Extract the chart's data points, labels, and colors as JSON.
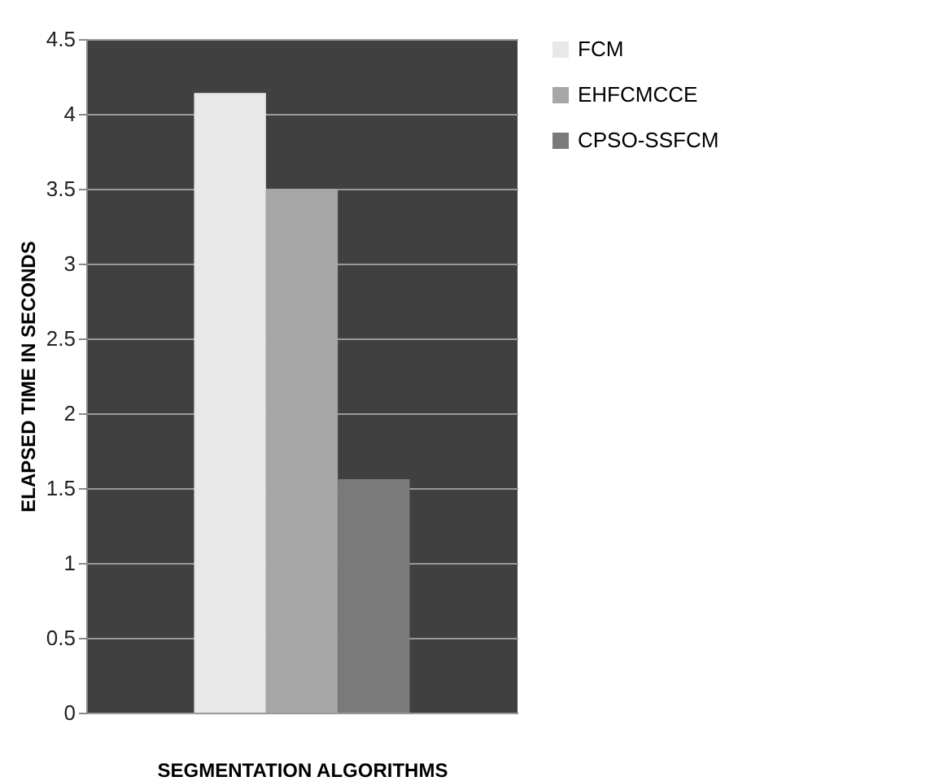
{
  "chart_data": {
    "type": "bar",
    "xlabel": "SEGMENTATION  ALGORITHMS",
    "ylabel": "ELAPSED TIME IN SECONDS",
    "categories": [
      null
    ],
    "series": [
      {
        "name": "FCM",
        "color": "#e8e8e8",
        "values": [
          4.14
        ]
      },
      {
        "name": "EHFCMCCE",
        "color": "#a6a6a6",
        "values": [
          3.5
        ]
      },
      {
        "name": "CPSO-SSFCM",
        "color": "#7a7a7a",
        "values": [
          1.56
        ]
      }
    ],
    "ylim": [
      0,
      4.5
    ],
    "yticks": [
      0,
      0.5,
      1,
      1.5,
      2,
      2.5,
      3,
      3.5,
      4,
      4.5
    ],
    "grid": "y",
    "legend": "right"
  }
}
